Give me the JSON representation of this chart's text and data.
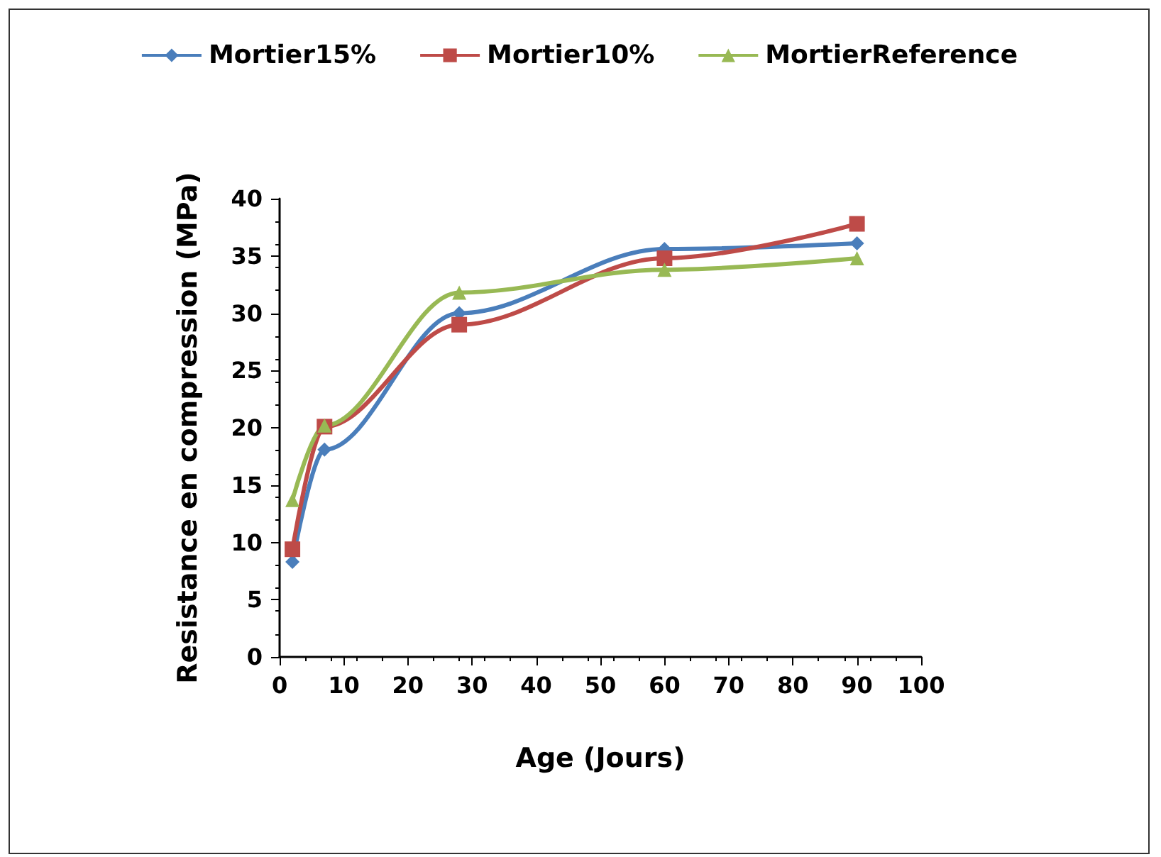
{
  "chart_data": {
    "type": "line",
    "xlabel": "Age (Jours)",
    "ylabel": "Resistance en compression (MPa)",
    "legend": "top",
    "grid": false,
    "x": [
      2,
      7,
      28,
      60,
      90
    ],
    "series": [
      {
        "name": "Mortier15%",
        "color": "#4a7ebb",
        "marker": "diamond",
        "values": [
          8.3,
          18.1,
          30,
          35.6,
          36.1
        ]
      },
      {
        "name": "Mortier10%",
        "color": "#be4b48",
        "marker": "square",
        "values": [
          9.4,
          20.1,
          29,
          34.8,
          37.8
        ]
      },
      {
        "name": "MortierReference",
        "color": "#98b954",
        "marker": "triangle",
        "values": [
          13.7,
          20.2,
          31.8,
          33.8,
          34.8
        ]
      }
    ],
    "xlim": [
      0,
      100
    ],
    "xticks": [
      0,
      10,
      20,
      30,
      40,
      50,
      60,
      70,
      80,
      90,
      100
    ],
    "ylim": [
      0,
      40
    ],
    "yticks": [
      0,
      5,
      10,
      15,
      20,
      25,
      30,
      35,
      40
    ]
  }
}
